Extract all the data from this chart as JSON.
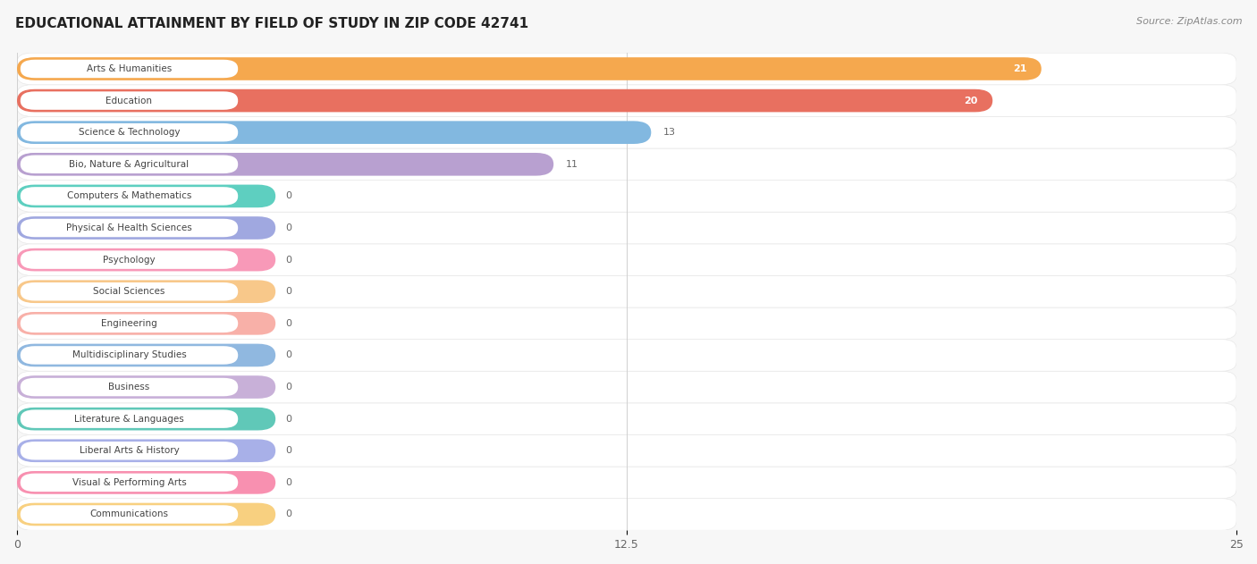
{
  "title": "EDUCATIONAL ATTAINMENT BY FIELD OF STUDY IN ZIP CODE 42741",
  "source": "Source: ZipAtlas.com",
  "categories": [
    "Arts & Humanities",
    "Education",
    "Science & Technology",
    "Bio, Nature & Agricultural",
    "Computers & Mathematics",
    "Physical & Health Sciences",
    "Psychology",
    "Social Sciences",
    "Engineering",
    "Multidisciplinary Studies",
    "Business",
    "Literature & Languages",
    "Liberal Arts & History",
    "Visual & Performing Arts",
    "Communications"
  ],
  "values": [
    21,
    20,
    13,
    11,
    0,
    0,
    0,
    0,
    0,
    0,
    0,
    0,
    0,
    0,
    0
  ],
  "bar_colors": [
    "#F5A84E",
    "#E87060",
    "#82B8E0",
    "#B8A0D0",
    "#5ECFC0",
    "#A0A8E0",
    "#F899B8",
    "#F8C88A",
    "#F8B0A8",
    "#90B8E0",
    "#C8B0D8",
    "#60C8B8",
    "#A8B0E8",
    "#F890B0",
    "#F8D080"
  ],
  "xlim": [
    0,
    25
  ],
  "xticks": [
    0,
    12.5,
    25
  ],
  "background_color": "#f7f7f7",
  "row_bg_color": "#ffffff",
  "row_alt_color": "#f0f0f0",
  "title_fontsize": 11,
  "source_fontsize": 8,
  "label_text_color": "#555555",
  "value_label_color_inside": "#ffffff",
  "value_label_color_outside": "#666666"
}
